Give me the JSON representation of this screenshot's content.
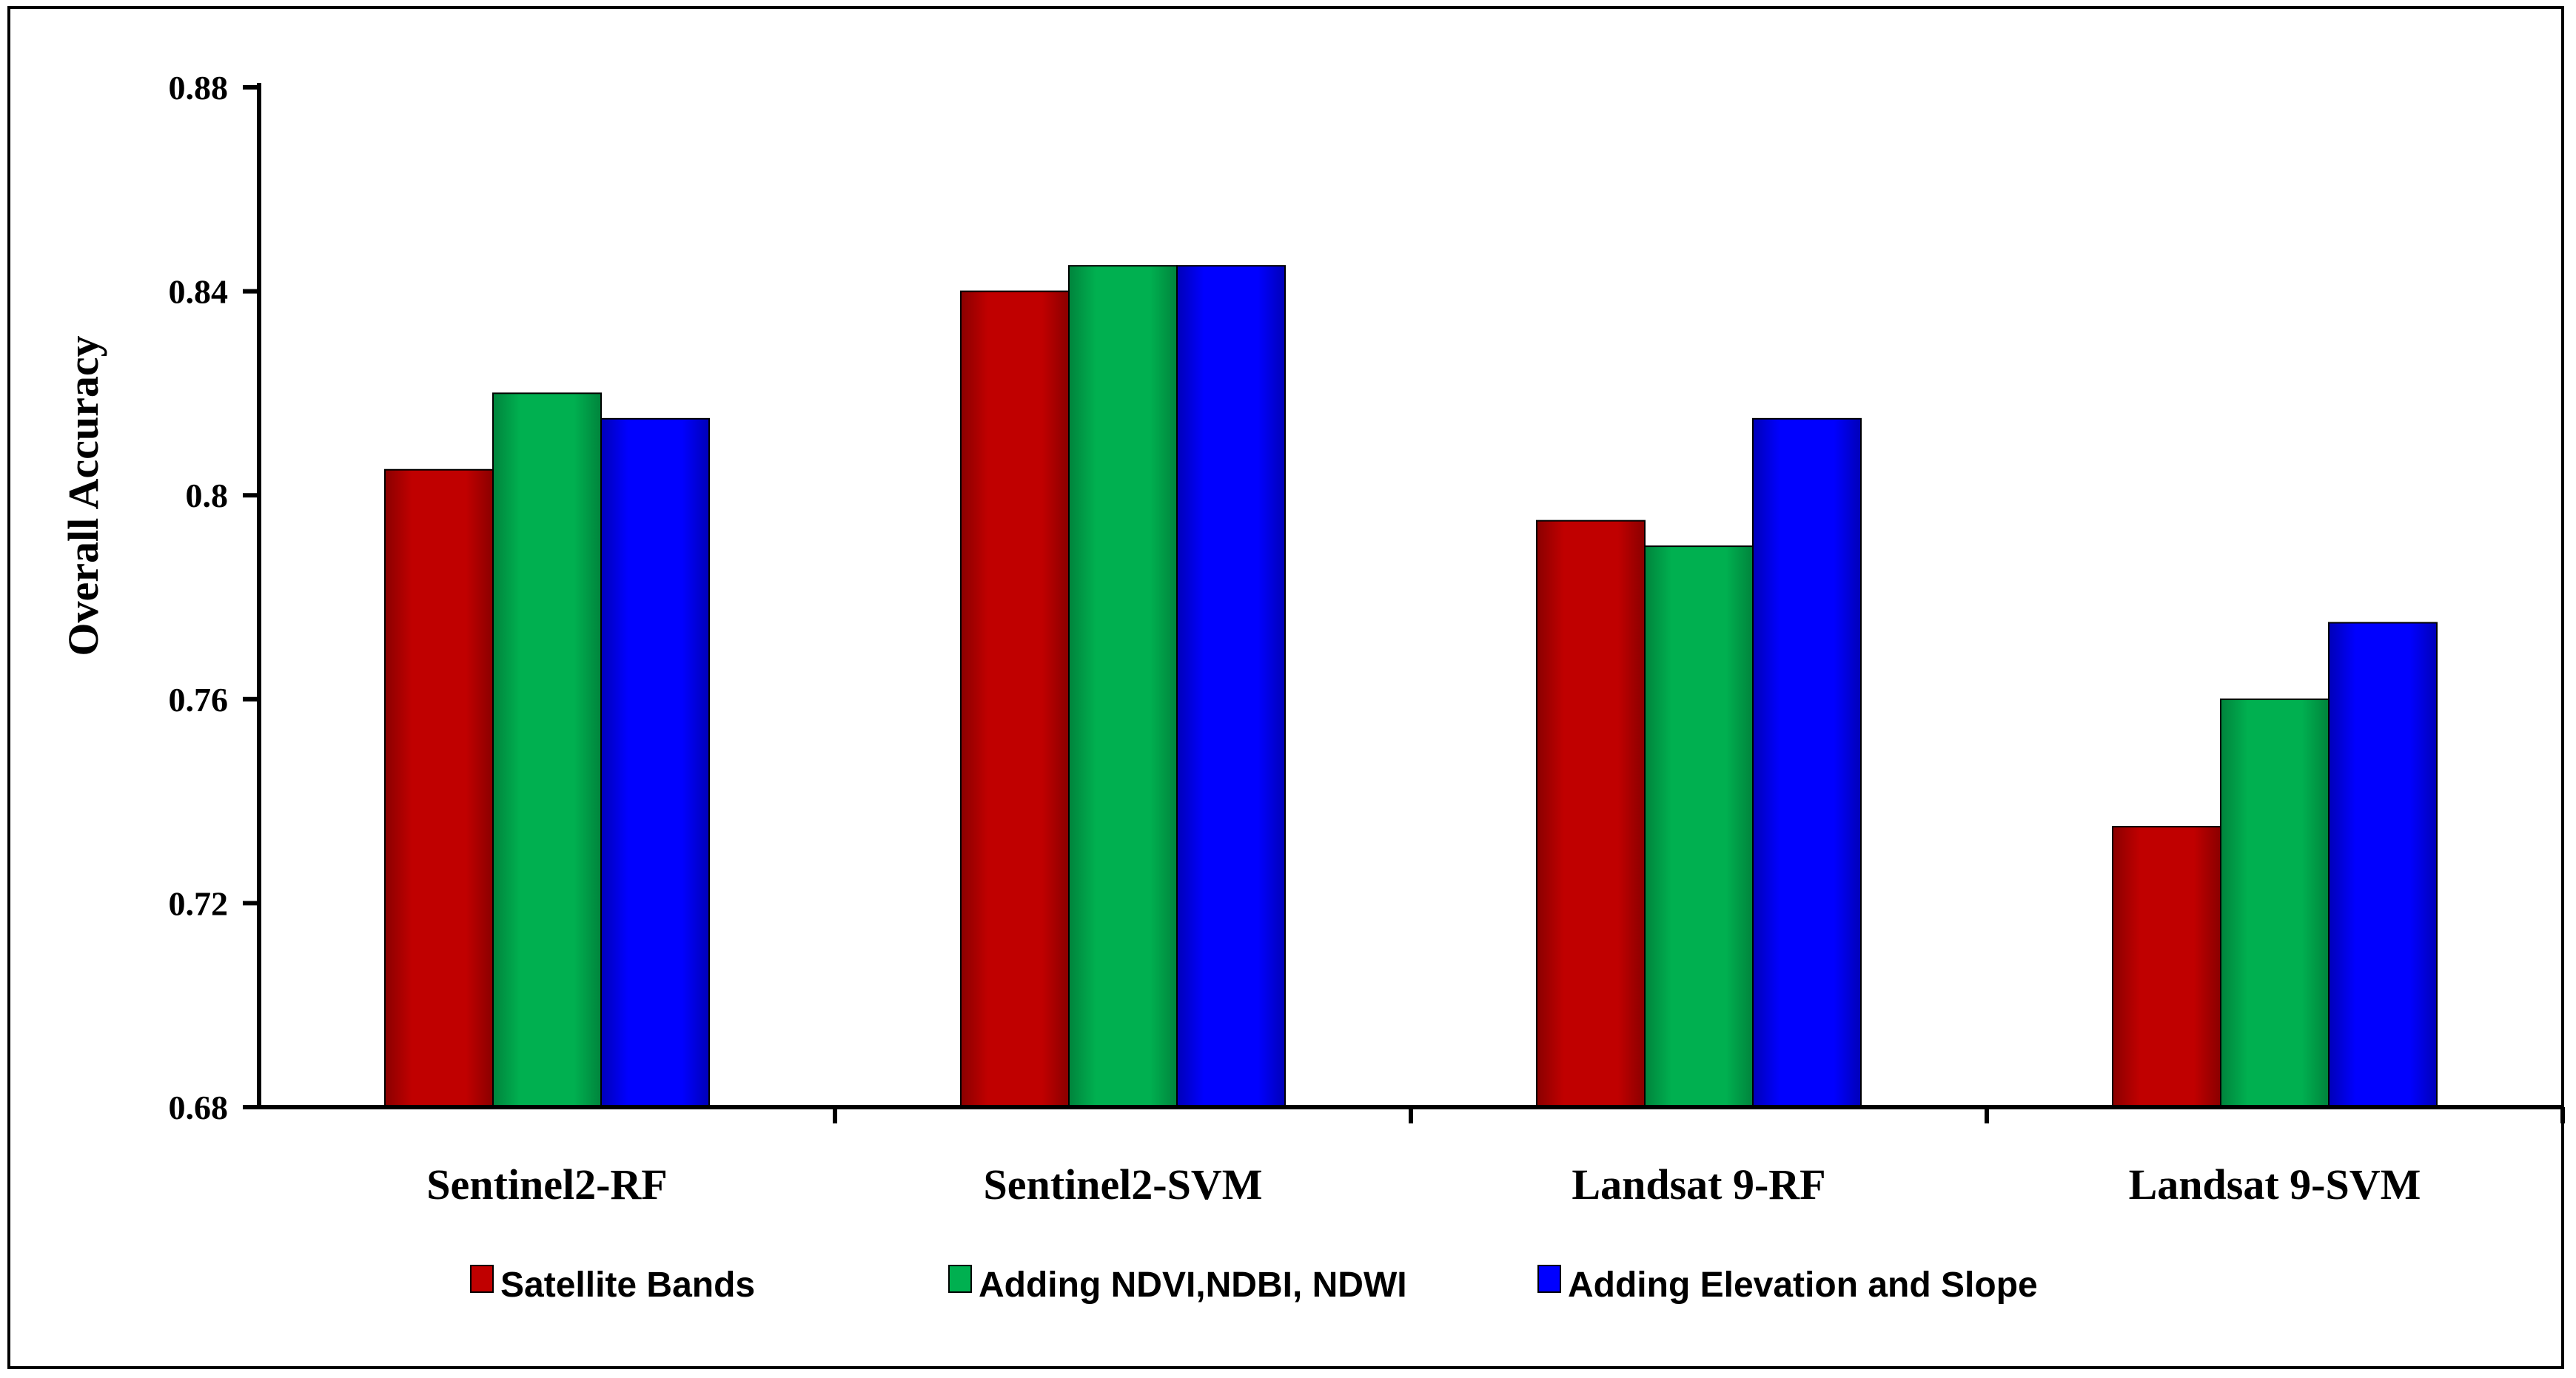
{
  "chart_data": {
    "type": "bar",
    "ylabel": "Overall Accuracy",
    "xlabel": "",
    "ylim": [
      0.68,
      0.88
    ],
    "yticks": [
      0.68,
      0.72,
      0.76,
      0.8,
      0.84,
      0.88
    ],
    "ytick_labels": [
      "0.68",
      "0.72",
      "0.76",
      "0.8",
      "0.84",
      "0.88"
    ],
    "categories": [
      "Sentinel2-RF",
      "Sentinel2-SVM",
      "Landsat 9-RF",
      "Landsat 9-SVM"
    ],
    "series": [
      {
        "name": "Satellite Bands",
        "color": "#C00000",
        "values": [
          0.805,
          0.84,
          0.795,
          0.735
        ]
      },
      {
        "name": "Adding NDVI,NDBI, NDWI",
        "color": "#00B050",
        "values": [
          0.82,
          0.845,
          0.79,
          0.76
        ]
      },
      {
        "name": "Adding Elevation and Slope",
        "color": "#0000FF",
        "values": [
          0.815,
          0.845,
          0.815,
          0.775
        ]
      }
    ],
    "legend_position": "bottom",
    "grid": false
  }
}
